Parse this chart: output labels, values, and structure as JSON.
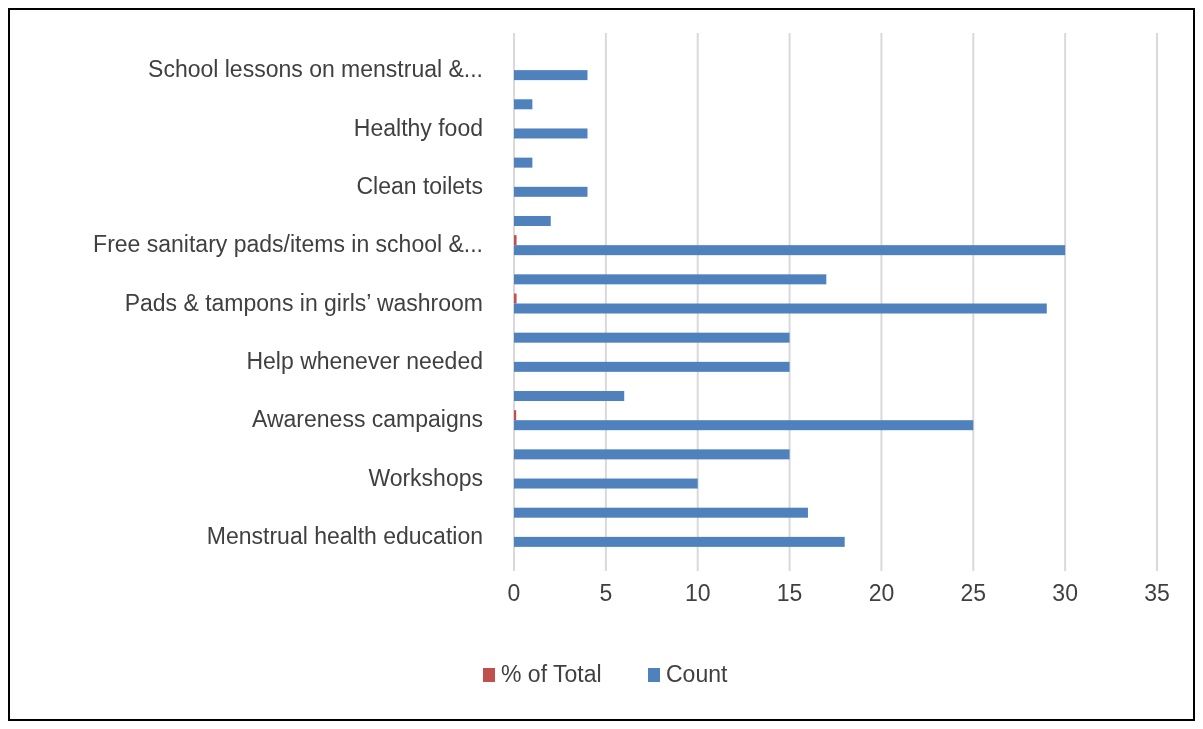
{
  "chart_data": {
    "type": "bar",
    "orientation": "horizontal",
    "categories": [
      "School lessons on menstrual &...",
      null,
      "Healthy food",
      null,
      "Clean toilets",
      null,
      "Free sanitary pads/items in school &...",
      null,
      "Pads & tampons in girls’ washroom",
      null,
      "Help whenever needed",
      null,
      "Awareness campaigns",
      null,
      "Workshops",
      null,
      "Menstrual health education"
    ],
    "series": [
      {
        "name": "% of Total",
        "color": "#c0504d",
        "values": [
          null,
          null,
          null,
          null,
          null,
          null,
          0.14,
          null,
          0.14,
          null,
          null,
          null,
          0.12,
          null,
          null,
          null,
          null
        ]
      },
      {
        "name": "Count",
        "color": "#4f81bd",
        "values": [
          4,
          1,
          4,
          1,
          4,
          2,
          30,
          17,
          29,
          15,
          15,
          6,
          25,
          15,
          10,
          16,
          18
        ]
      }
    ],
    "xlim": [
      0,
      35
    ],
    "xticks": [
      0,
      5,
      10,
      15,
      20,
      25,
      30,
      35
    ],
    "grid": "x",
    "legend": "bottom"
  }
}
